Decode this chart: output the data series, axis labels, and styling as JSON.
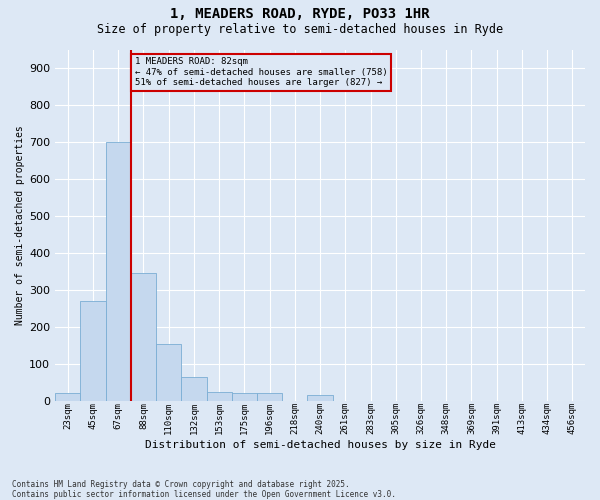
{
  "title": "1, MEADERS ROAD, RYDE, PO33 1HR",
  "subtitle": "Size of property relative to semi-detached houses in Ryde",
  "xlabel": "Distribution of semi-detached houses by size in Ryde",
  "ylabel": "Number of semi-detached properties",
  "footer": "Contains HM Land Registry data © Crown copyright and database right 2025.\nContains public sector information licensed under the Open Government Licence v3.0.",
  "bins": [
    "23sqm",
    "45sqm",
    "67sqm",
    "88sqm",
    "110sqm",
    "132sqm",
    "153sqm",
    "175sqm",
    "196sqm",
    "218sqm",
    "240sqm",
    "261sqm",
    "283sqm",
    "305sqm",
    "326sqm",
    "348sqm",
    "369sqm",
    "391sqm",
    "413sqm",
    "434sqm",
    "456sqm"
  ],
  "bar_values": [
    20,
    270,
    700,
    345,
    155,
    65,
    25,
    20,
    20,
    0,
    15,
    0,
    0,
    0,
    0,
    0,
    0,
    0,
    0,
    0,
    0
  ],
  "bar_color": "#c5d8ee",
  "bar_edgecolor": "#7aadd4",
  "background_color": "#dde8f5",
  "grid_color": "#ffffff",
  "vline_pos": 2.5,
  "vline_color": "#cc0000",
  "annotation_line1": "1 MEADERS ROAD: 82sqm",
  "annotation_line2": "← 47% of semi-detached houses are smaller (758)",
  "annotation_line3": "51% of semi-detached houses are larger (827) →",
  "annotation_box_edgecolor": "#cc0000",
  "ylim": [
    0,
    950
  ],
  "yticks": [
    0,
    100,
    200,
    300,
    400,
    500,
    600,
    700,
    800,
    900
  ]
}
